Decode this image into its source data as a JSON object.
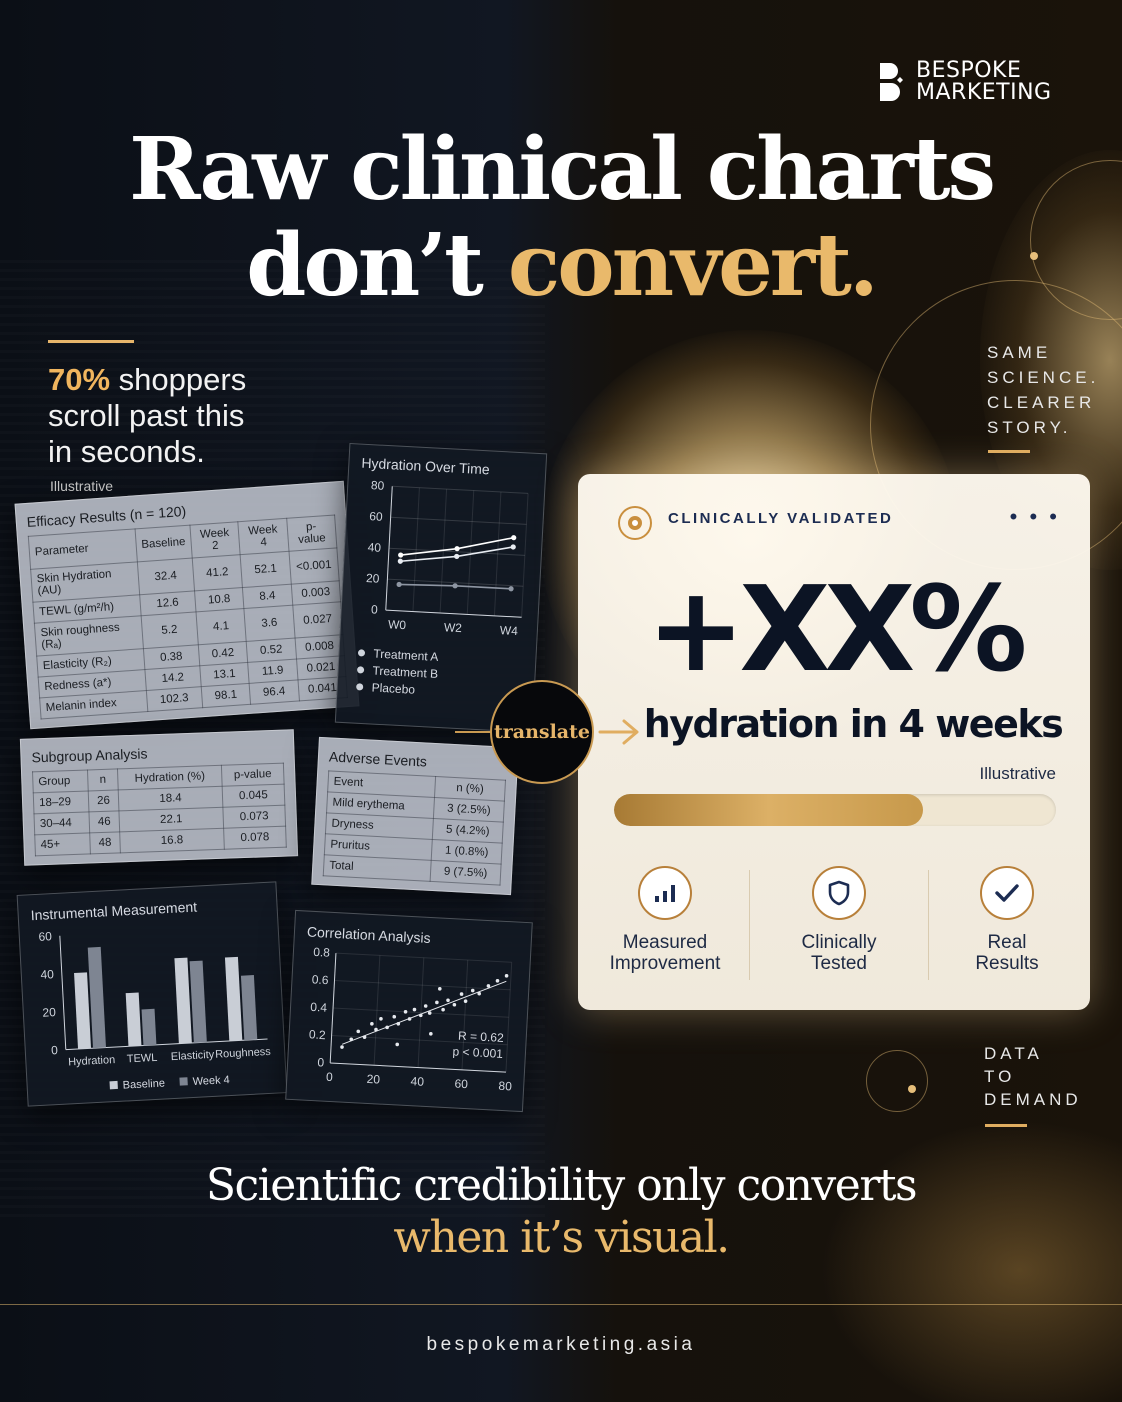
{
  "brand": {
    "line1": "BESPOKE",
    "line2": "MARKETING"
  },
  "headline": {
    "line1": "Raw clinical charts",
    "line2_white": "don’t",
    "line2_gold": "convert."
  },
  "stat": {
    "percent": "70%",
    "text_after": "shoppers",
    "line2": "scroll past this",
    "line3": "in seconds.",
    "note": "Illustrative"
  },
  "efficacy": {
    "title": "Efficacy Results (n = 120)",
    "headers": [
      "Parameter",
      "Baseline",
      "Week 2",
      "Week 4",
      "p-value"
    ],
    "rows": [
      [
        "Skin Hydration (AU)",
        "32.4",
        "41.2",
        "52.1",
        "<0.001"
      ],
      [
        "TEWL (g/m²/h)",
        "12.6",
        "10.8",
        "8.4",
        "0.003"
      ],
      [
        "Skin roughness (Rₐ)",
        "5.2",
        "4.1",
        "3.6",
        "0.027"
      ],
      [
        "Elasticity (R₂)",
        "0.38",
        "0.42",
        "0.52",
        "0.008"
      ],
      [
        "Redness (a*)",
        "14.2",
        "13.1",
        "11.9",
        "0.021"
      ],
      [
        "Melanin index",
        "102.3",
        "98.1",
        "96.4",
        "0.041"
      ]
    ]
  },
  "subgroup": {
    "title": "Subgroup Analysis",
    "headers": [
      "Group",
      "n",
      "Hydration (%)",
      "p-value"
    ],
    "rows": [
      [
        "18–29",
        "26",
        "18.4",
        "0.045"
      ],
      [
        "30–44",
        "46",
        "22.1",
        "0.073"
      ],
      [
        "45+",
        "48",
        "16.8",
        "0.078"
      ]
    ]
  },
  "adverse": {
    "title": "Adverse Events",
    "headers": [
      "Event",
      "n (%)"
    ],
    "rows": [
      [
        "Mild erythema",
        "3 (2.5%)"
      ],
      [
        "Dryness",
        "5 (4.2%)"
      ],
      [
        "Pruritus",
        "1 (0.8%)"
      ],
      [
        "Total",
        "9 (7.5%)"
      ]
    ]
  },
  "chart_data": [
    {
      "type": "line",
      "title": "Hydration Over Time",
      "categories": [
        "W0",
        "W2",
        "W4"
      ],
      "ylim": [
        0,
        80
      ],
      "yticks": [
        "80",
        "60",
        "40",
        "20",
        "0"
      ],
      "series": [
        {
          "name": "Treatment A",
          "values": [
            36,
            42,
            51
          ]
        },
        {
          "name": "Treatment B",
          "values": [
            32,
            37,
            45
          ]
        },
        {
          "name": "Placebo",
          "values": [
            17,
            18,
            18
          ]
        }
      ],
      "legend": "bottom"
    },
    {
      "type": "bar",
      "title": "Instrumental Measurement",
      "categories": [
        "Hydration",
        "TEWL",
        "Elasticity",
        "Roughness"
      ],
      "ylim": [
        0,
        60
      ],
      "yticks": [
        "60",
        "40",
        "20",
        "0"
      ],
      "series": [
        {
          "name": "Baseline",
          "values": [
            40,
            28,
            45,
            44
          ]
        },
        {
          "name": "Week 4",
          "values": [
            53,
            19,
            43,
            34
          ]
        }
      ],
      "legend": "bottom"
    },
    {
      "type": "scatter",
      "title": "Correlation Analysis",
      "xlim": [
        0,
        80
      ],
      "ylim": [
        0,
        0.8
      ],
      "xticks": [
        "0",
        "20",
        "40",
        "60",
        "80"
      ],
      "yticks": [
        "0.8",
        "0.6",
        "0.4",
        "0.2",
        "0"
      ],
      "points": [
        [
          5,
          0.12
        ],
        [
          9,
          0.18
        ],
        [
          12,
          0.24
        ],
        [
          15,
          0.2
        ],
        [
          18,
          0.3
        ],
        [
          20,
          0.26
        ],
        [
          22,
          0.34
        ],
        [
          25,
          0.28
        ],
        [
          28,
          0.36
        ],
        [
          30,
          0.31
        ],
        [
          33,
          0.4
        ],
        [
          35,
          0.35
        ],
        [
          37,
          0.42
        ],
        [
          40,
          0.38
        ],
        [
          42,
          0.45
        ],
        [
          44,
          0.4
        ],
        [
          47,
          0.48
        ],
        [
          50,
          0.43
        ],
        [
          52,
          0.5
        ],
        [
          55,
          0.47
        ],
        [
          58,
          0.55
        ],
        [
          60,
          0.5
        ],
        [
          63,
          0.58
        ],
        [
          66,
          0.56
        ],
        [
          70,
          0.62
        ],
        [
          74,
          0.66
        ],
        [
          78,
          0.7
        ],
        [
          30,
          0.16
        ],
        [
          45,
          0.25
        ],
        [
          48,
          0.58
        ]
      ],
      "fit": [
        [
          5,
          0.14
        ],
        [
          78,
          0.66
        ]
      ],
      "annotations": [
        "R = 0.62",
        "p < 0.001"
      ]
    }
  ],
  "translate": "translate",
  "card": {
    "badge": "CLINICALLY VALIDATED",
    "menu": "• • •",
    "big": "+XX%",
    "sub": "hydration in 4 weeks",
    "note": "Illustrative",
    "progress": 0.7,
    "features": [
      {
        "line1": "Measured",
        "line2": "Improvement",
        "icon": "bar-chart-icon"
      },
      {
        "line1": "Clinically",
        "line2": "Tested",
        "icon": "shield-icon"
      },
      {
        "line1": "Real",
        "line2": "Results",
        "icon": "check-icon"
      }
    ]
  },
  "side_top": [
    "SAME",
    "SCIENCE.",
    "CLEARER",
    "STORY."
  ],
  "side_bottom": [
    "DATA",
    "TO",
    "DEMAND"
  ],
  "closing": {
    "line1": "Scientific credibility only converts",
    "line2": "when it’s visual."
  },
  "footer": "bespokemarketing.asia",
  "colors": {
    "gold": "#e9b96b",
    "navy": "#0c1424"
  }
}
